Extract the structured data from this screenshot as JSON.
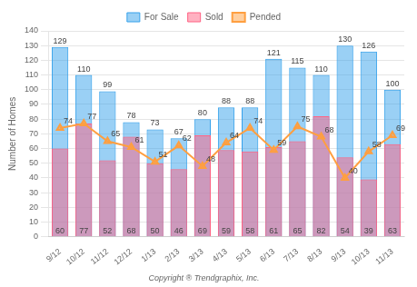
{
  "chart_data": {
    "type": "bar",
    "categories": [
      "9/12",
      "10/12",
      "11/12",
      "12/12",
      "1/13",
      "2/13",
      "3/13",
      "4/13",
      "5/13",
      "6/13",
      "7/13",
      "8/13",
      "9/13",
      "10/13",
      "11/13"
    ],
    "series": [
      {
        "name": "For Sale",
        "type": "bar",
        "values": [
          129,
          110,
          99,
          78,
          73,
          67,
          80,
          88,
          88,
          121,
          115,
          110,
          130,
          126,
          100
        ]
      },
      {
        "name": "Sold",
        "type": "bar",
        "values": [
          60,
          77,
          52,
          68,
          50,
          46,
          69,
          59,
          58,
          61,
          65,
          82,
          54,
          39,
          63
        ]
      },
      {
        "name": "Pended",
        "type": "line",
        "marker": "triangle",
        "values": [
          74,
          77,
          65,
          61,
          51,
          62,
          48,
          64,
          74,
          59,
          75,
          68,
          40,
          58,
          69
        ]
      }
    ],
    "ylabel": "Number of Homes",
    "ylim": [
      0,
      140
    ],
    "yticks": [
      0,
      10,
      20,
      30,
      40,
      50,
      60,
      70,
      80,
      90,
      100,
      110,
      120,
      130,
      140
    ],
    "grid": true,
    "legend": "top",
    "data_labels": true,
    "annotations": [
      "Copyright ® Trendgraphix, Inc."
    ]
  }
}
